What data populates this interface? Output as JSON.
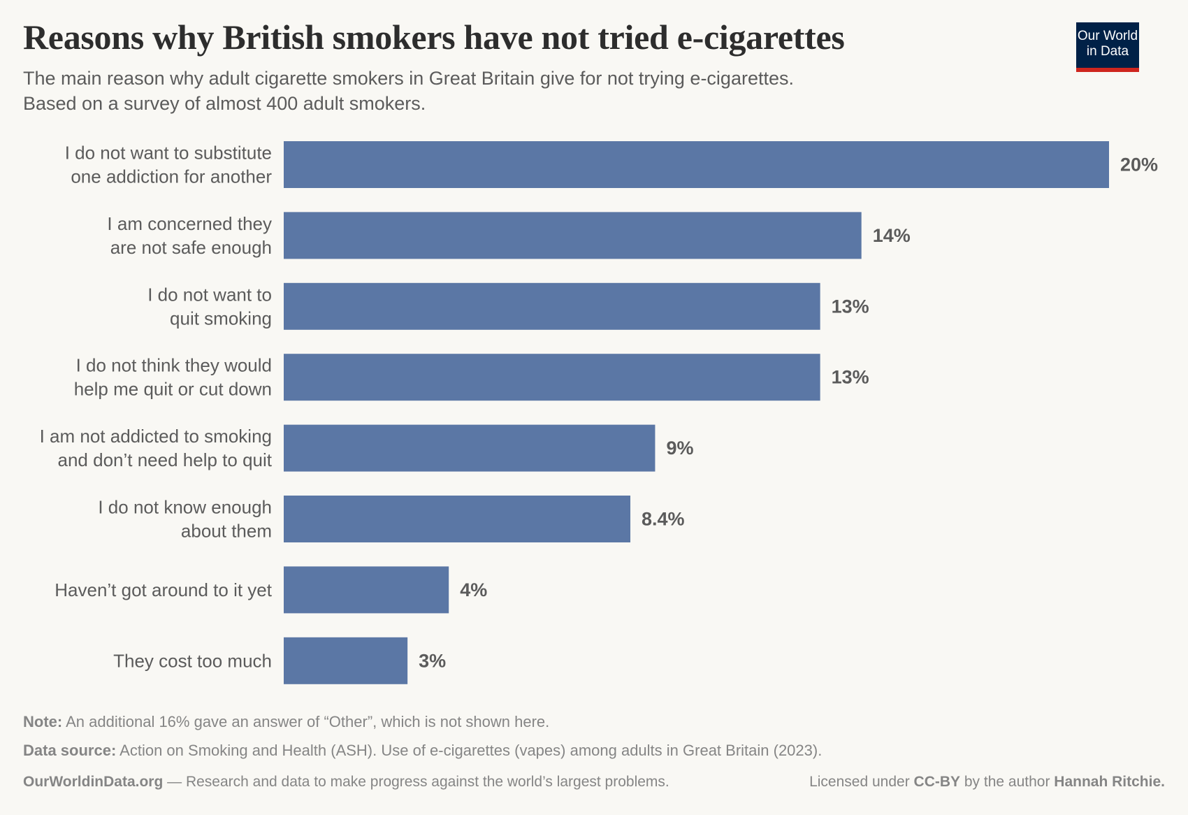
{
  "header": {
    "title": "Reasons why British smokers have not tried e-cigarettes",
    "subtitle_line1": "The main reason why adult cigarette smokers in Great Britain give for not trying e-cigarettes.",
    "subtitle_line2": "Based on a survey of almost 400 adult smokers.",
    "logo_line1": "Our World",
    "logo_line2": "in Data"
  },
  "chart_data": {
    "type": "bar",
    "orientation": "horizontal",
    "categories": [
      [
        "I do not want to substitute",
        "one addiction for another"
      ],
      [
        "I am concerned they",
        "are not safe enough"
      ],
      [
        "I do not want to",
        "quit smoking"
      ],
      [
        "I do not think they would",
        "help me quit or cut down"
      ],
      [
        "I am not addicted to smoking",
        "and don’t need help to quit"
      ],
      [
        "I do not know enough",
        "about them"
      ],
      [
        "Haven’t got around to it yet"
      ],
      [
        "They cost too much"
      ]
    ],
    "values": [
      20,
      14,
      13,
      13,
      9,
      8.4,
      4,
      3
    ],
    "value_labels": [
      "20%",
      "14%",
      "13%",
      "13%",
      "9%",
      "8.4%",
      "4%",
      "3%"
    ],
    "unit": "%",
    "xlim": [
      0,
      20
    ],
    "grid": false,
    "bar_color": "#5b77a5"
  },
  "footer": {
    "note_label": "Note:",
    "note_text": " An additional 16% gave an answer of “Other”, which is not shown here.",
    "source_label": "Data source:",
    "source_text": " Action on Smoking and Health (ASH). Use of e-cigarettes (vapes) among adults in Great Britain (2023).",
    "site": "OurWorldinData.org",
    "site_text": " — Research and data to make progress against the world’s largest problems.",
    "license_pre": "Licensed under ",
    "license": "CC-BY",
    "license_mid": " by the author ",
    "author": "Hannah Ritchie."
  }
}
